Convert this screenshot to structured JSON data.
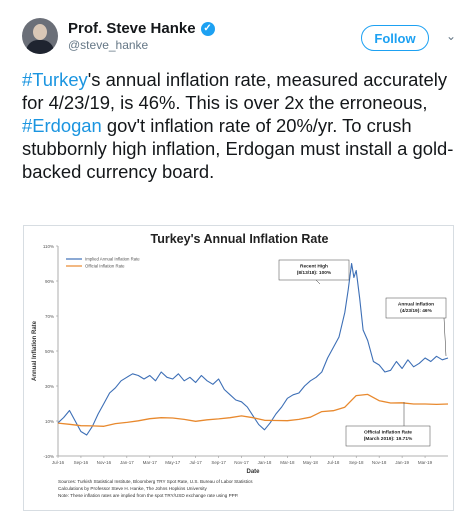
{
  "author": {
    "name": "Prof. Steve Hanke",
    "handle": "@steve_hanke"
  },
  "follow_label": "Follow",
  "tweet": {
    "hashtag1": "#Turkey",
    "text1": "'s annual inflation rate, measured accurately for 4/23/19, is 46%. This is over 2x the erroneous, ",
    "hashtag2": "#Erdogan",
    "text2": " gov't inflation rate of 20%/yr. To crush stubbornly high inflation, Erdogan must install a gold-backed currency board."
  },
  "chart_data": {
    "type": "line",
    "title": "Turkey's Annual Inflation Rate",
    "xlabel": "Date",
    "ylabel": "Annual Inflation Rate",
    "ylim": [
      -10,
      110
    ],
    "yticks": [
      -10,
      10,
      30,
      50,
      70,
      90,
      110
    ],
    "ytick_labels": [
      "-10%",
      "10%",
      "30%",
      "50%",
      "70%",
      "90%",
      "110%"
    ],
    "xtick_labels": [
      "Jul-16",
      "Sep-16",
      "Nov-16",
      "Jan-17",
      "Mar-17",
      "May-17",
      "Jul-17",
      "Sep-17",
      "Nov-17",
      "Jan-18",
      "Mar-18",
      "May-18",
      "Jul-18",
      "Sep-18",
      "Nov-18",
      "Jan-19",
      "Mar-19"
    ],
    "x_months": [
      0,
      2,
      4,
      6,
      8,
      10,
      12,
      14,
      16,
      18,
      20,
      22,
      24,
      26,
      28,
      30,
      32
    ],
    "grid": false,
    "legend": "top-left",
    "series": [
      {
        "name": "Implied Annual Inflation Rate",
        "color": "#3d6fb6",
        "x": [
          0,
          0.5,
          1,
          1.5,
          2,
          2.5,
          3,
          3.5,
          4,
          4.5,
          5,
          5.5,
          6,
          6.5,
          7,
          7.5,
          8,
          8.5,
          9,
          9.5,
          10,
          10.5,
          11,
          11.5,
          12,
          12.5,
          13,
          13.5,
          14,
          14.5,
          15,
          15.5,
          16,
          16.5,
          17,
          17.5,
          18,
          18.5,
          19,
          19.5,
          20,
          20.5,
          21,
          21.5,
          22,
          22.5,
          23,
          23.5,
          24,
          24.5,
          25,
          25.3,
          25.6,
          25.8,
          26,
          26.3,
          26.6,
          27,
          27.5,
          28,
          28.5,
          29,
          29.5,
          30,
          30.5,
          31,
          31.5,
          32,
          32.5,
          33,
          33.5,
          34
        ],
        "y": [
          9,
          12,
          16,
          10,
          4,
          2,
          7,
          14,
          20,
          26,
          29,
          33,
          35,
          37,
          36,
          34,
          36,
          33,
          38,
          35,
          34,
          37,
          33,
          35,
          32,
          36,
          33,
          31,
          34,
          28,
          25,
          22,
          21,
          18,
          13,
          8,
          5,
          9,
          14,
          18,
          23,
          25,
          26,
          30,
          33,
          35,
          38,
          46,
          52,
          58,
          72,
          85,
          100,
          92,
          96,
          80,
          62,
          56,
          44,
          42,
          38,
          39,
          44,
          40,
          45,
          41,
          43,
          46,
          44,
          47,
          45,
          46
        ]
      },
      {
        "name": "Official Inflation Rate",
        "color": "#e8892e",
        "x": [
          0,
          1,
          2,
          3,
          4,
          5,
          6,
          7,
          8,
          9,
          10,
          11,
          12,
          13,
          14,
          15,
          16,
          17,
          18,
          19,
          20,
          21,
          22,
          23,
          24,
          25,
          26,
          27,
          28,
          29,
          30,
          31,
          32,
          33,
          34
        ],
        "y": [
          8.8,
          8.1,
          7.3,
          7.2,
          7.0,
          8.5,
          9.2,
          10.1,
          11.3,
          11.9,
          11.7,
          10.9,
          9.8,
          10.7,
          11.2,
          11.9,
          12.9,
          11.9,
          10.4,
          10.3,
          10.2,
          10.9,
          12.2,
          15.4,
          15.9,
          17.9,
          24.5,
          25.2,
          21.6,
          20.3,
          20.4,
          19.7,
          19.7,
          19.5,
          19.7
        ]
      }
    ],
    "annotations": [
      {
        "text": "Recent High\n(8/13/18): 100%"
      },
      {
        "text": "Annual Inflation\n(4/23/19): 46%"
      },
      {
        "text": "Official Inflation Rate\n(March 2019): 19.71%"
      }
    ],
    "notes": [
      "Sources: Turkish Statistical Institute, Bloomberg TRY Spot Rate, U.S. Bureau of Labor Statistics",
      "Calculations by Professor Steve H. Hanke, The Johns Hopkins University",
      "Note: These inflation rates are implied from the spot TRY/USD exchange rate using PPP."
    ]
  }
}
